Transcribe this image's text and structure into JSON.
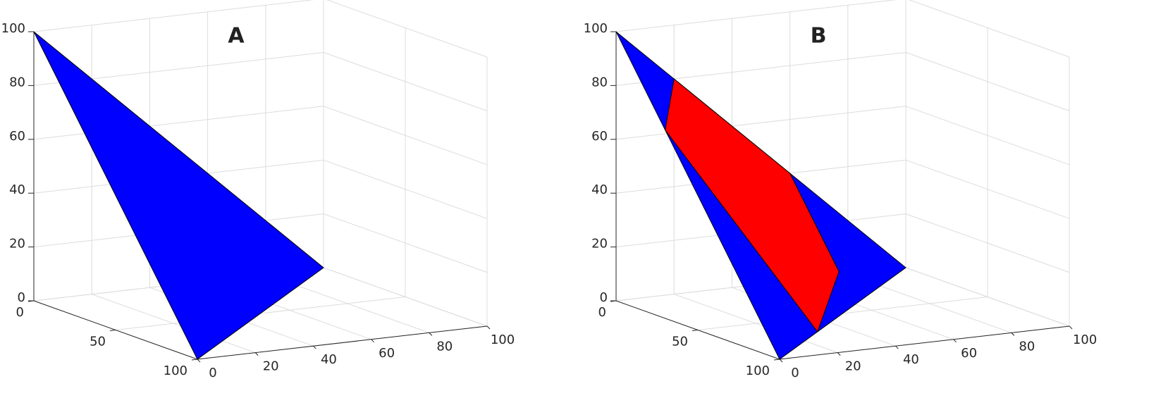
{
  "chart_data": [
    {
      "type": "polygon3d",
      "title": "A",
      "xlim": [
        0,
        100
      ],
      "ylim": [
        0,
        100
      ],
      "zlim": [
        0,
        100
      ],
      "xticks": [
        0,
        20,
        40,
        60,
        80,
        100
      ],
      "yticks": [
        0,
        50,
        100
      ],
      "zticks": [
        0,
        20,
        40,
        60,
        80,
        100
      ],
      "grid": true,
      "polygons": [
        {
          "color": "#0000ff",
          "x": [
            0,
            0,
            100
          ],
          "y": [
            0,
            100,
            0
          ],
          "z": [
            100,
            0,
            0
          ]
        }
      ]
    },
    {
      "type": "polygon3d",
      "title": "B",
      "xlim": [
        0,
        100
      ],
      "ylim": [
        0,
        100
      ],
      "zlim": [
        0,
        100
      ],
      "xticks": [
        0,
        20,
        40,
        60,
        80,
        100
      ],
      "yticks": [
        0,
        50,
        100
      ],
      "zticks": [
        0,
        20,
        40,
        60,
        80,
        100
      ],
      "grid": true,
      "polygons": [
        {
          "color": "#0000ff",
          "x": [
            0,
            0,
            100
          ],
          "y": [
            0,
            100,
            0
          ],
          "z": [
            100,
            0,
            0
          ]
        },
        {
          "color": "#ff0000",
          "x": [
            20,
            0,
            30,
            60,
            60
          ],
          "y": [
            0,
            30,
            70,
            30,
            0
          ],
          "z": [
            80,
            70,
            0,
            10,
            40
          ]
        }
      ]
    }
  ]
}
